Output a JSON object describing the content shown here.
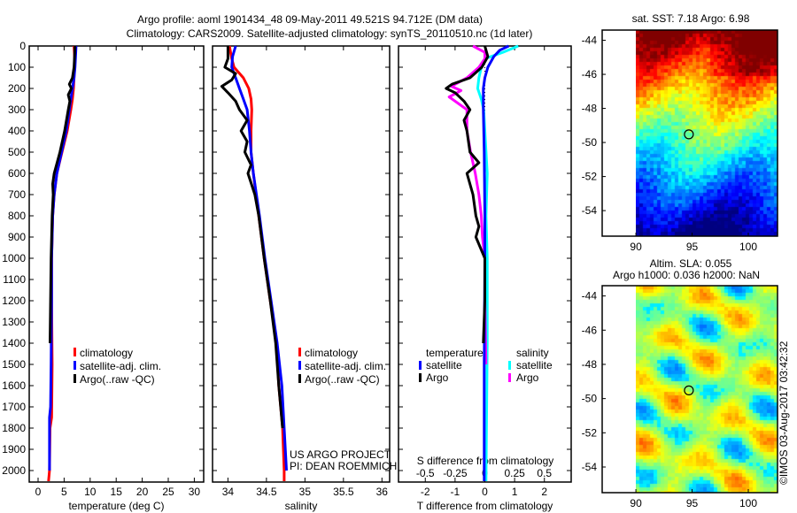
{
  "title": {
    "line1": "Argo profile: aoml 1901434_48 09-May-2011 49.521S 94.712E (DM data)",
    "line2": "Climatology: CARS2009. Satellite-adjusted climatology: synTS_20110510.nc (1d later)"
  },
  "credits": {
    "line1": "US ARGO PROJECT",
    "line2": "PI: DEAN ROEMMICH",
    "copyright": "©IMOS 03-Aug-2017 03:42:32"
  },
  "colors": {
    "climatology": "#ff0000",
    "satellite": "#0000ff",
    "argo": "#000000",
    "sal_satellite": "#00ffff",
    "sal_argo": "#ff00ff"
  },
  "chart_data": [
    {
      "type": "line",
      "id": "temperature",
      "xlabel": "temperature (deg C)",
      "ylabel": "",
      "xlim": [
        -1.7,
        31.8
      ],
      "ylim": [
        2055,
        0
      ],
      "xticks": [
        "0",
        "5",
        "10",
        "15",
        "20",
        "25",
        "30"
      ],
      "xtick_values": [
        0,
        5,
        10,
        15,
        20,
        25,
        30
      ],
      "yticks": [
        "0",
        "100",
        "200",
        "300",
        "400",
        "500",
        "600",
        "700",
        "800",
        "900",
        "1000",
        "1100",
        "1200",
        "1300",
        "1400",
        "1500",
        "1600",
        "1700",
        "1800",
        "1900",
        "2000"
      ],
      "legend": [
        "climatology",
        "satellite-adj. clim.",
        "Argo(..raw -QC)"
      ],
      "series": [
        {
          "name": "climatology",
          "color": "#ff0000",
          "depth": [
            0,
            50,
            100,
            150,
            200,
            250,
            300,
            400,
            500,
            600,
            700,
            800,
            1000,
            1200,
            1500,
            1750,
            1800,
            2000,
            2050
          ],
          "values": [
            6.9,
            7.0,
            7.0,
            6.9,
            6.8,
            6.6,
            6.3,
            5.6,
            4.6,
            3.6,
            3.1,
            2.8,
            2.6,
            2.6,
            2.7,
            2.6,
            2.3,
            2.2,
            2.0
          ]
        },
        {
          "name": "satellite-adj. clim.",
          "color": "#0000ff",
          "depth": [
            0,
            50,
            100,
            150,
            200,
            250,
            300,
            400,
            500,
            600,
            700,
            800,
            1000,
            1200,
            1500,
            1700,
            1750,
            2000
          ],
          "values": [
            7.3,
            7.2,
            7.1,
            6.9,
            6.6,
            6.3,
            6.0,
            5.4,
            4.5,
            3.6,
            3.1,
            2.8,
            2.6,
            2.6,
            2.5,
            2.4,
            2.2,
            2.2
          ]
        },
        {
          "name": "Argo",
          "color": "#000000",
          "depth": [
            0,
            50,
            100,
            150,
            180,
            200,
            230,
            260,
            300,
            400,
            500,
            600,
            650,
            700,
            800,
            1000,
            1200,
            1400
          ],
          "values": [
            7.1,
            7.0,
            6.9,
            6.6,
            6.0,
            6.4,
            5.8,
            6.1,
            5.8,
            5.1,
            4.2,
            3.1,
            2.8,
            2.9,
            2.7,
            2.5,
            2.4,
            2.3
          ]
        }
      ]
    },
    {
      "type": "line",
      "id": "salinity",
      "xlabel": "salinity",
      "xlim": [
        33.8,
        36.1
      ],
      "ylim": [
        2055,
        0
      ],
      "xticks": [
        "34",
        "34.5",
        "35",
        "35.5",
        "36"
      ],
      "xtick_values": [
        34,
        34.5,
        35,
        35.5,
        36
      ],
      "legend": [
        "climatology",
        "satellite-adj. clim.",
        "Argo(..raw -QC)"
      ],
      "series": [
        {
          "name": "climatology",
          "color": "#ff0000",
          "depth": [
            0,
            60,
            100,
            150,
            200,
            250,
            300,
            400,
            500,
            600,
            800,
            1000,
            1200,
            1400,
            1600,
            1800,
            2000,
            2050
          ],
          "values": [
            34.02,
            34.05,
            34.08,
            34.2,
            34.27,
            34.3,
            34.31,
            34.3,
            34.3,
            34.33,
            34.4,
            34.47,
            34.55,
            34.63,
            34.66,
            34.71,
            34.73,
            34.73
          ]
        },
        {
          "name": "satellite-adj. clim.",
          "color": "#0000ff",
          "depth": [
            0,
            50,
            100,
            150,
            200,
            250,
            300,
            400,
            500,
            600,
            800,
            1000,
            1200,
            1400,
            1600,
            1800,
            2000
          ],
          "values": [
            34.1,
            34.06,
            34.05,
            34.1,
            34.15,
            34.2,
            34.25,
            34.28,
            34.3,
            34.33,
            34.41,
            34.48,
            34.56,
            34.64,
            34.7,
            34.73,
            34.76
          ]
        },
        {
          "name": "Argo",
          "color": "#000000",
          "depth": [
            0,
            60,
            100,
            130,
            160,
            190,
            220,
            260,
            300,
            350,
            400,
            450,
            500,
            560,
            600,
            700,
            800,
            1000,
            1200,
            1400,
            1600,
            1800
          ],
          "values": [
            34.0,
            34.0,
            33.96,
            34.1,
            34.05,
            33.92,
            34.0,
            34.1,
            34.15,
            34.25,
            34.17,
            34.25,
            34.22,
            34.3,
            34.26,
            34.35,
            34.4,
            34.47,
            34.55,
            34.62,
            34.66,
            34.71
          ]
        }
      ]
    },
    {
      "type": "line",
      "id": "differences",
      "xlabel": "T difference from climatology",
      "xlabel_top": "S difference from climatology",
      "xlim": [
        -2.9,
        2.9
      ],
      "ylim": [
        2055,
        0
      ],
      "xticks": [
        "-2",
        "-1",
        "0",
        "1",
        "2"
      ],
      "xtick_values": [
        -2,
        -1,
        0,
        1,
        2
      ],
      "xticks_top": [
        "-0.5",
        "-0.25",
        "0",
        "0.25",
        "0.5"
      ],
      "xtick_values_top": [
        -0.5,
        -0.25,
        0,
        0.25,
        0.5
      ],
      "legend_temperature": {
        "title": "temperature",
        "items": [
          "satellite",
          "Argo"
        ]
      },
      "legend_salinity": {
        "title": "salinity",
        "items": [
          "satellite",
          "Argo"
        ]
      },
      "series": [
        {
          "name": "salinity satellite",
          "color": "#00ffff",
          "scale": "S",
          "depth": [
            0,
            30,
            60,
            100,
            150,
            200,
            250,
            300,
            400,
            600,
            800,
            1000,
            1400,
            2050
          ],
          "values": [
            0.28,
            0.15,
            0.0,
            -0.03,
            -0.05,
            -0.06,
            -0.03,
            -0.01,
            0.0,
            0.02,
            0.01,
            0.02,
            0.02,
            0.01
          ]
        },
        {
          "name": "salinity Argo",
          "color": "#ff00ff",
          "scale": "S",
          "depth": [
            0,
            30,
            60,
            100,
            150,
            190,
            210,
            240,
            300,
            400,
            500,
            600,
            700,
            800,
            900,
            1000,
            1200,
            1500
          ],
          "values": [
            -0.1,
            0.0,
            0.0,
            -0.05,
            -0.15,
            -0.28,
            -0.2,
            -0.3,
            -0.15,
            -0.15,
            -0.12,
            -0.08,
            -0.05,
            -0.03,
            -0.02,
            0.0,
            0.0,
            0.01
          ]
        },
        {
          "name": "temperature satellite",
          "color": "#0000ff",
          "scale": "T",
          "depth": [
            0,
            20,
            50,
            100,
            150,
            200,
            300,
            500,
            800,
            1000,
            1500,
            2050
          ],
          "values": [
            0.8,
            0.5,
            0.3,
            0.1,
            0.0,
            -0.05,
            -0.05,
            -0.02,
            0.0,
            0.0,
            -0.02,
            -0.02
          ]
        },
        {
          "name": "temperature Argo",
          "color": "#000000",
          "scale": "T",
          "depth": [
            0,
            50,
            100,
            150,
            180,
            200,
            220,
            260,
            300,
            350,
            400,
            500,
            550,
            600,
            700,
            800,
            850,
            900,
            1000,
            1200,
            1400
          ],
          "values": [
            0.0,
            0.1,
            -0.1,
            -0.5,
            -1.1,
            -1.3,
            -1.0,
            -0.7,
            -0.5,
            -0.7,
            -0.6,
            -0.5,
            -0.2,
            -0.6,
            -0.4,
            -0.3,
            -0.2,
            -0.3,
            0.0,
            0.0,
            -0.05
          ]
        }
      ]
    },
    {
      "type": "heatmap",
      "id": "sst-map",
      "title": "sat. SST: 7.18  Argo: 6.98",
      "xlim": [
        87,
        102.6
      ],
      "ylim": [
        -55.5,
        -43.4
      ],
      "xticks": [
        "90",
        "95",
        "100"
      ],
      "xtick_values": [
        90,
        95,
        100
      ],
      "yticks": [
        "-44",
        "-46",
        "-48",
        "-50",
        "-52",
        "-54"
      ],
      "ytick_values": [
        -44,
        -46,
        -48,
        -50,
        -52,
        -54
      ],
      "marker": {
        "lon": 94.712,
        "lat": -49.521
      }
    },
    {
      "type": "heatmap",
      "id": "sla-map",
      "title": "Altim. SLA: 0.055",
      "subtitle": "Argo h1000: 0.036 h2000: NaN",
      "xlim": [
        87,
        102.6
      ],
      "ylim": [
        -55.5,
        -43.4
      ],
      "xticks": [
        "90",
        "95",
        "100"
      ],
      "xtick_values": [
        90,
        95,
        100
      ],
      "yticks": [
        "-44",
        "-46",
        "-48",
        "-50",
        "-52",
        "-54"
      ],
      "ytick_values": [
        -44,
        -46,
        -48,
        -50,
        -52,
        -54
      ],
      "marker": {
        "lon": 94.712,
        "lat": -49.521
      }
    }
  ]
}
